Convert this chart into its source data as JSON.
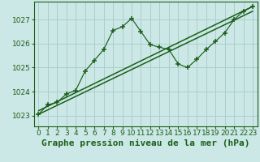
{
  "xlabel": "Graphe pression niveau de la mer (hPa)",
  "bg_color": "#cce8e6",
  "grid_color": "#aacfcc",
  "line_color": "#1a5e1a",
  "x_ticks": [
    0,
    1,
    2,
    3,
    4,
    5,
    6,
    7,
    8,
    9,
    10,
    11,
    12,
    13,
    14,
    15,
    16,
    17,
    18,
    19,
    20,
    21,
    22,
    23
  ],
  "y_ticks": [
    1023,
    1024,
    1025,
    1026,
    1027
  ],
  "ylim": [
    1022.55,
    1027.75
  ],
  "xlim": [
    -0.5,
    23.5
  ],
  "jagged_x": [
    0,
    1,
    2,
    3,
    4,
    5,
    6,
    7,
    8,
    9,
    10,
    11,
    12,
    13,
    14,
    15,
    16,
    17,
    18,
    19,
    20,
    21,
    22,
    23
  ],
  "jagged_y": [
    1023.05,
    1023.45,
    1023.55,
    1023.9,
    1024.05,
    1024.85,
    1025.3,
    1025.75,
    1026.55,
    1026.7,
    1027.05,
    1026.5,
    1025.95,
    1025.85,
    1025.75,
    1025.15,
    1025.0,
    1025.35,
    1025.75,
    1026.1,
    1026.45,
    1027.0,
    1027.35,
    1027.55
  ],
  "trend1_x": [
    0,
    23
  ],
  "trend1_y": [
    1023.2,
    1027.55
  ],
  "trend2_x": [
    0,
    23
  ],
  "trend2_y": [
    1023.05,
    1027.35
  ],
  "xlabel_fontsize": 8,
  "tick_fontsize": 6.5,
  "xlabel_fontweight": "bold"
}
